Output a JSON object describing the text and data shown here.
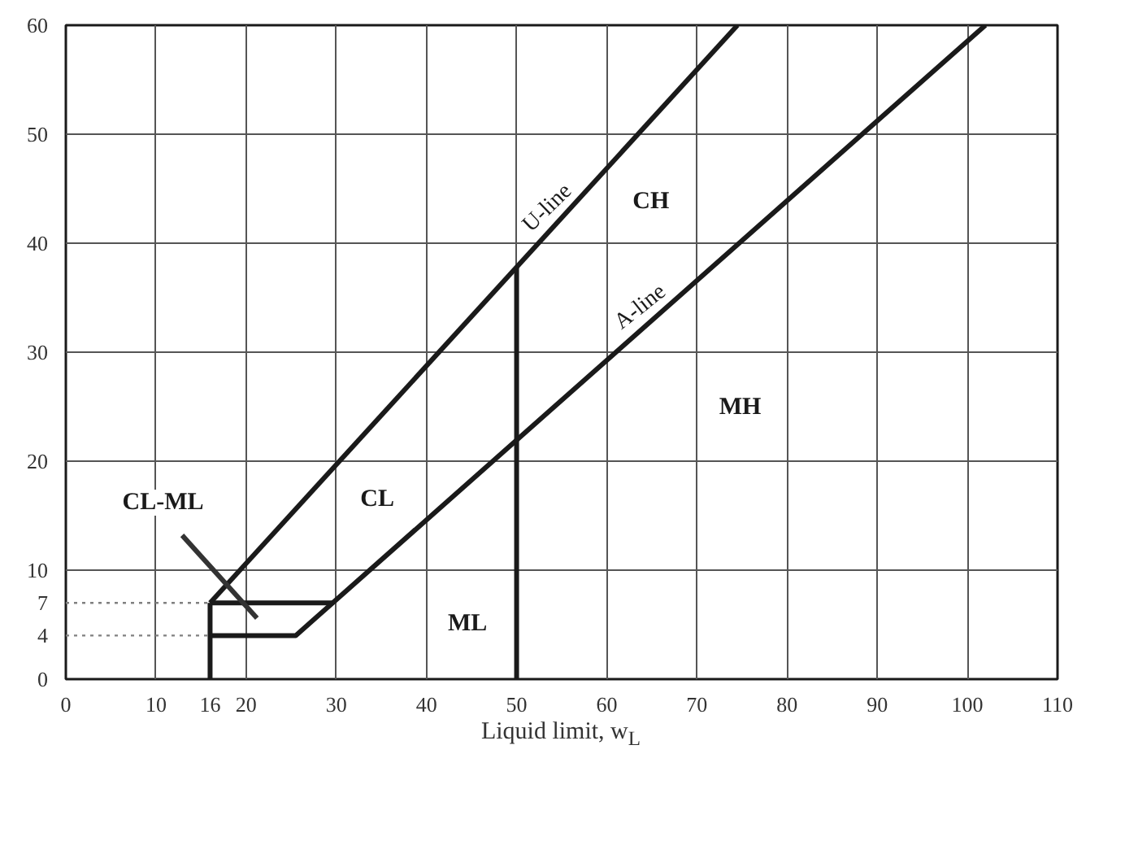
{
  "chart_data": {
    "type": "line",
    "xlabel": "Liquid limit, w$_{L}$",
    "xlim": [
      0,
      110
    ],
    "ylim": [
      0,
      60
    ],
    "xticks": [
      0,
      10,
      16,
      20,
      30,
      40,
      50,
      60,
      70,
      80,
      90,
      100,
      110
    ],
    "yticks": [
      0,
      4,
      7,
      10,
      20,
      30,
      40,
      50,
      60
    ],
    "grid": true,
    "marker": "none",
    "line_style": "solid",
    "series": [
      {
        "color": "#1a1a1a",
        "x": [
          16,
          74.5
        ],
        "values": [
          7,
          60
        ]
      },
      {
        "color": "#1a1a1a",
        "x": [
          16,
          25.5,
          29.6,
          102
        ],
        "values": [
          4,
          4,
          7,
          60
        ]
      },
      {
        "color": "#1a1a1a",
        "x": [
          16,
          29.6
        ],
        "values": [
          7,
          7
        ]
      },
      {
        "color": "#1a1a1a",
        "x": [
          16,
          16
        ],
        "values": [
          0,
          7
        ]
      },
      {
        "color": "#1a1a1a",
        "x": [
          50,
          50
        ],
        "values": [
          0,
          37.8
        ]
      },
      {
        "color": "#808080",
        "x": [
          0,
          16
        ],
        "values": [
          7,
          7
        ],
        "line_style": "dotted"
      },
      {
        "color": "#808080",
        "x": [
          0,
          16
        ],
        "values": [
          4,
          4
        ],
        "line_style": "dotted"
      },
      {
        "color": "#333333",
        "x": [
          12.9,
          21.2
        ],
        "values": [
          13.2,
          5.6
        ]
      }
    ],
    "annotations": [
      "CL-ML",
      "CL",
      "ML",
      "CH",
      "MH",
      {
        "text": "U-line",
        "x": 54.4,
        "y": 41.79
      },
      {
        "text": "A-line",
        "x": 64.6,
        "y": 32.62
      }
    ]
  }
}
